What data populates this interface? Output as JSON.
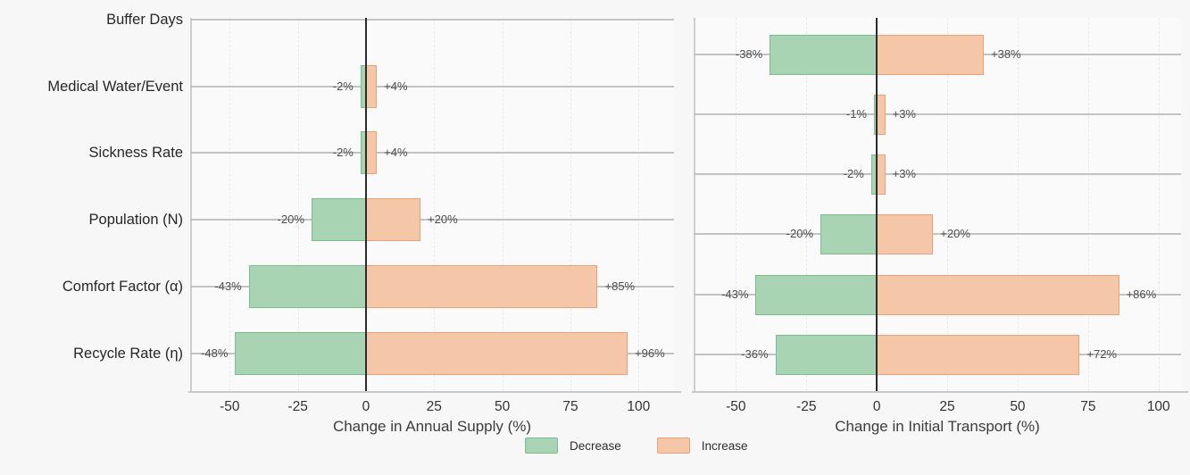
{
  "chart_data": [
    {
      "type": "bar",
      "orientation": "horizontal",
      "panel": "annual-supply",
      "xlabel": "Change in Annual Supply (%)",
      "xlim": [
        -64.5,
        113
      ],
      "xticks": [
        -50,
        -25,
        0,
        25,
        50,
        75,
        100
      ],
      "xtick_labels": [
        "-50",
        "-25",
        "0",
        "25",
        "50",
        "75",
        "100"
      ],
      "categories": [
        "Buffer Days",
        "Medical Water/Event",
        "Sickness Rate",
        "Population (N)",
        "Comfort Factor (α)",
        "Recycle Rate (η)"
      ],
      "series": [
        {
          "name": "Decrease",
          "values": [
            0,
            -2,
            -2,
            -20,
            -43,
            -48
          ],
          "labels": [
            "",
            "-2%",
            "-2%",
            "-20%",
            "-43%",
            "-48%"
          ]
        },
        {
          "name": "Increase",
          "values": [
            0,
            4,
            4,
            20,
            85,
            96
          ],
          "labels": [
            "",
            "+4%",
            "+4%",
            "+20%",
            "+85%",
            "+96%"
          ]
        }
      ],
      "grid": true,
      "legend_position": "bottom-center"
    },
    {
      "type": "bar",
      "orientation": "horizontal",
      "panel": "initial-transport",
      "xlabel": "Change in Initial Transport (%)",
      "xlim": [
        -65,
        108
      ],
      "xticks": [
        -50,
        -25,
        0,
        25,
        50,
        75,
        100
      ],
      "xtick_labels": [
        "-50",
        "-25",
        "0",
        "25",
        "50",
        "75",
        "100"
      ],
      "categories": [
        "Buffer Days",
        "Medical Water/Event",
        "Sickness Rate",
        "Population (N)",
        "Comfort Factor (α)",
        "Recycle Rate (η)"
      ],
      "series": [
        {
          "name": "Decrease",
          "values": [
            -38,
            -1,
            -2,
            -20,
            -43,
            -36
          ],
          "labels": [
            "-38%",
            "-1%",
            "-2%",
            "-20%",
            "-43%",
            "-36%"
          ]
        },
        {
          "name": "Increase",
          "values": [
            38,
            3,
            3,
            20,
            86,
            72
          ],
          "labels": [
            "+38%",
            "+3%",
            "+3%",
            "+20%",
            "+86%",
            "+72%"
          ]
        }
      ],
      "grid": true,
      "legend_position": "bottom-center"
    }
  ],
  "legend": {
    "items": [
      {
        "label": "Decrease",
        "fill": "#a8d4b4",
        "border": "#7cbe92"
      },
      {
        "label": "Increase",
        "fill": "#f6c6a8",
        "border": "#e8a278"
      }
    ]
  },
  "colors": {
    "decrease_fill": "#a8d4b4",
    "decrease_border": "#7cbe92",
    "increase_fill": "#f6c6a8",
    "increase_border": "#e8a278",
    "zero_line": "#2b2b2b",
    "background": "#f7f7f8"
  }
}
